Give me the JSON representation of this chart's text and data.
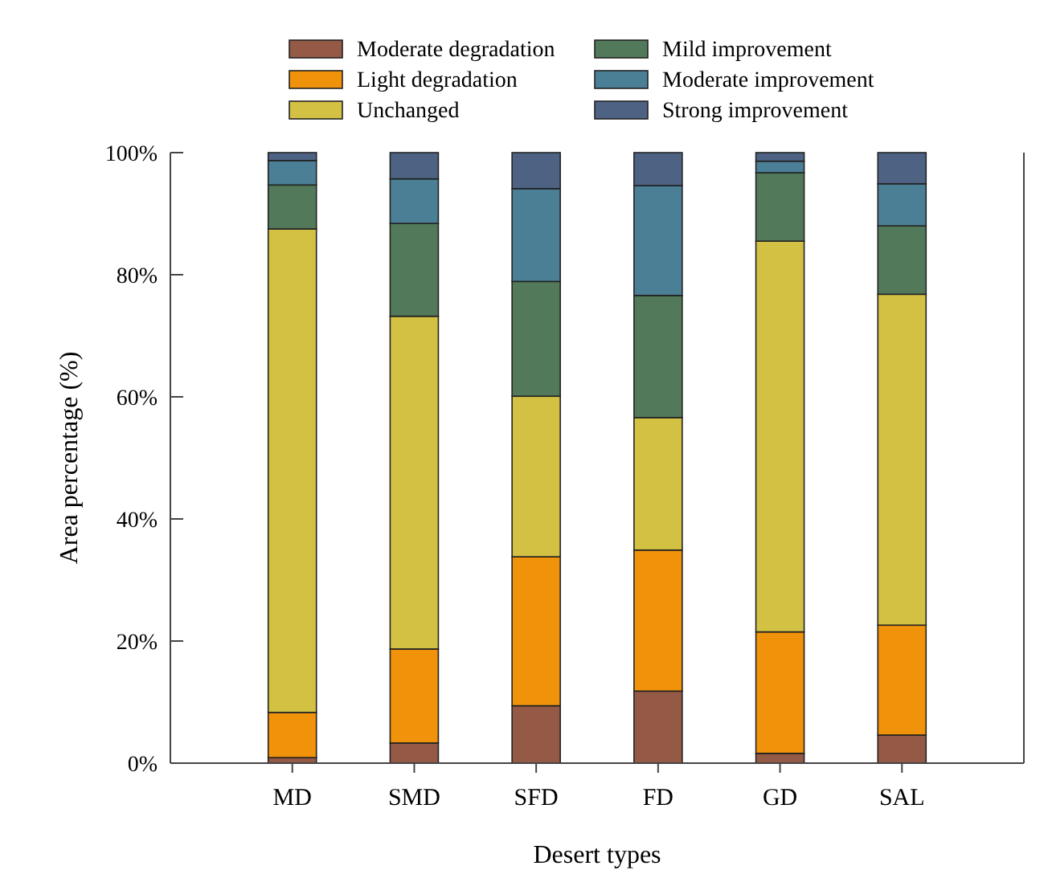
{
  "chart_data": {
    "type": "bar",
    "stacked": true,
    "xlabel": "Desert types",
    "ylabel": "Area percentage (%)",
    "categories": [
      "MD",
      "SMD",
      "SFD",
      "FD",
      "GD",
      "SAL"
    ],
    "series": [
      {
        "name": "Moderate degradation",
        "color": "#955a45",
        "values": [
          0.9,
          3.3,
          9.4,
          11.8,
          1.6,
          4.6
        ]
      },
      {
        "name": "Light degradation",
        "color": "#f0920a",
        "values": [
          7.4,
          15.4,
          24.4,
          23.1,
          19.9,
          18.0
        ]
      },
      {
        "name": "Unchanged",
        "color": "#d3c144",
        "values": [
          79.2,
          54.5,
          26.3,
          21.7,
          64.0,
          54.2
        ]
      },
      {
        "name": "Mild improvement",
        "color": "#527a5a",
        "values": [
          7.2,
          15.2,
          18.8,
          20.0,
          11.2,
          11.2
        ]
      },
      {
        "name": "Moderate improvement",
        "color": "#4a7f95",
        "values": [
          4.0,
          7.3,
          15.2,
          18.0,
          1.9,
          6.9
        ]
      },
      {
        "name": "Strong improvement",
        "color": "#4e6384",
        "values": [
          1.3,
          4.3,
          5.9,
          5.4,
          1.4,
          5.1
        ]
      }
    ],
    "ylim": [
      0,
      100
    ],
    "yticks": [
      {
        "value": 0,
        "label": "0%"
      },
      {
        "value": 20,
        "label": "20%"
      },
      {
        "value": 40,
        "label": "40%"
      },
      {
        "value": 60,
        "label": "60%"
      },
      {
        "value": 80,
        "label": "80%"
      },
      {
        "value": 100,
        "label": "100%"
      }
    ],
    "legend": "top",
    "grid": false
  }
}
